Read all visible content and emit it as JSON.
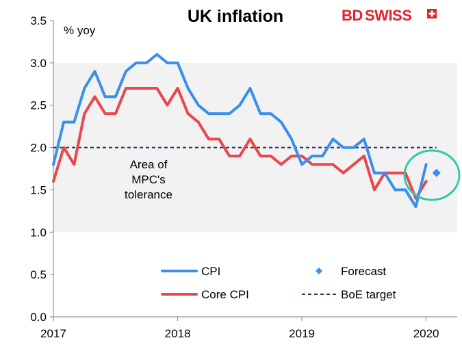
{
  "chart_data": {
    "type": "line",
    "title": "UK inflation",
    "ylabel": "% yoy",
    "xlabel": "",
    "ylim": [
      0,
      3.5
    ],
    "yticks": [
      "0.0",
      "0.5",
      "1.0",
      "1.5",
      "2.0",
      "2.5",
      "3.0",
      "3.5"
    ],
    "xlim": [
      "2017-01",
      "2020-04"
    ],
    "xticks": [
      "2017",
      "2018",
      "2019",
      "2020"
    ],
    "grid": false,
    "tolerance_band": [
      1.0,
      3.0
    ],
    "annotation": [
      "Area of",
      "MPC's",
      "tolerance"
    ],
    "logo": {
      "text_a": "BD",
      "text_b": "SWISS",
      "color": "#e1232c"
    },
    "highlight_circle_color": "#2ec9a8",
    "series": [
      {
        "name": "CPI",
        "color": "#3b8fe8",
        "x": [
          "2017-01",
          "2017-02",
          "2017-03",
          "2017-04",
          "2017-05",
          "2017-06",
          "2017-07",
          "2017-08",
          "2017-09",
          "2017-10",
          "2017-11",
          "2017-12",
          "2018-01",
          "2018-02",
          "2018-03",
          "2018-04",
          "2018-05",
          "2018-06",
          "2018-07",
          "2018-08",
          "2018-09",
          "2018-10",
          "2018-11",
          "2018-12",
          "2019-01",
          "2019-02",
          "2019-03",
          "2019-04",
          "2019-05",
          "2019-06",
          "2019-07",
          "2019-08",
          "2019-09",
          "2019-10",
          "2019-11",
          "2019-12",
          "2020-01"
        ],
        "values": [
          1.8,
          2.3,
          2.3,
          2.7,
          2.9,
          2.6,
          2.6,
          2.9,
          3.0,
          3.0,
          3.1,
          3.0,
          3.0,
          2.7,
          2.5,
          2.4,
          2.4,
          2.4,
          2.5,
          2.7,
          2.4,
          2.4,
          2.3,
          2.1,
          1.8,
          1.9,
          1.9,
          2.1,
          2.0,
          2.0,
          2.1,
          1.7,
          1.7,
          1.5,
          1.5,
          1.3,
          1.8
        ]
      },
      {
        "name": "Core CPI",
        "color": "#e8474d",
        "x": [
          "2017-01",
          "2017-02",
          "2017-03",
          "2017-04",
          "2017-05",
          "2017-06",
          "2017-07",
          "2017-08",
          "2017-09",
          "2017-10",
          "2017-11",
          "2017-12",
          "2018-01",
          "2018-02",
          "2018-03",
          "2018-04",
          "2018-05",
          "2018-06",
          "2018-07",
          "2018-08",
          "2018-09",
          "2018-10",
          "2018-11",
          "2018-12",
          "2019-01",
          "2019-02",
          "2019-03",
          "2019-04",
          "2019-05",
          "2019-06",
          "2019-07",
          "2019-08",
          "2019-09",
          "2019-10",
          "2019-11",
          "2019-12",
          "2020-01"
        ],
        "values": [
          1.6,
          2.0,
          1.8,
          2.4,
          2.6,
          2.4,
          2.4,
          2.7,
          2.7,
          2.7,
          2.7,
          2.5,
          2.7,
          2.4,
          2.3,
          2.1,
          2.1,
          1.9,
          1.9,
          2.1,
          1.9,
          1.9,
          1.8,
          1.9,
          1.9,
          1.8,
          1.8,
          1.8,
          1.7,
          1.8,
          1.9,
          1.5,
          1.7,
          1.7,
          1.7,
          1.4,
          1.6
        ]
      },
      {
        "name": "Forecast",
        "color": "#3b8fe8",
        "marker": "diamond",
        "x": [
          "2020-02"
        ],
        "values": [
          1.7
        ]
      },
      {
        "name": "BoE target",
        "color": "#1f3864",
        "style": "dashed",
        "x": [
          "2017-01",
          "2020-02"
        ],
        "values": [
          2.0,
          2.0
        ]
      }
    ],
    "legend": {
      "position": "bottom-center",
      "entries": [
        "CPI",
        "Forecast",
        "Core CPI",
        "BoE target"
      ]
    }
  }
}
